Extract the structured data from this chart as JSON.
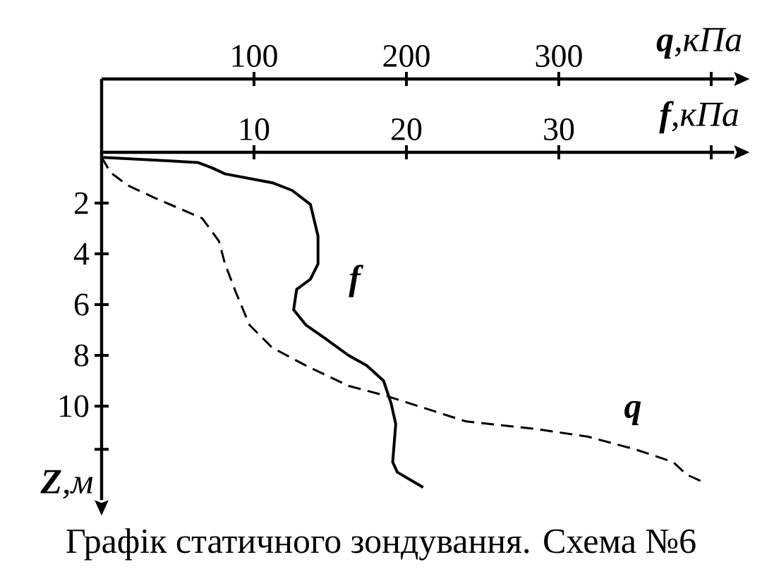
{
  "chart_data": {
    "type": "line",
    "title": "Графік статичного зондування. Схема №6",
    "xlabel": "**f**,кПа",
    "x2label": "**q**,кПа",
    "ylabel": "**Z**,м",
    "xlim": [
      0,
      41.5
    ],
    "xticks": [
      10,
      20,
      30,
      {
        "value": 40,
        "label": null
      }
    ],
    "x2lim": [
      0,
      415
    ],
    "x2ticks": [
      100,
      200,
      300,
      {
        "value": 400,
        "label": null
      }
    ],
    "ylim": [
      13.7,
      0
    ],
    "yticks": [
      2,
      4,
      6,
      8,
      10,
      {
        "value": 11.7,
        "label": null
      }
    ],
    "marker": "none",
    "series": [
      {
        "name": "f",
        "color": "#000000",
        "line_style": "solid",
        "x": [
          0.1,
          6.3,
          7.2,
          8.1,
          11.2,
          12.5,
          13.7,
          14.2,
          14.2,
          13.7,
          12.8,
          12.6,
          13.4,
          14.6,
          16.2,
          17.4,
          18.5,
          19.0,
          19.3,
          19.1,
          19.4,
          21.1
        ],
        "values": [
          0.2,
          0.4,
          0.6,
          0.85,
          1.2,
          1.5,
          2.05,
          3.3,
          4.4,
          5.0,
          5.4,
          6.2,
          6.8,
          7.3,
          8.0,
          8.4,
          9.0,
          9.9,
          10.7,
          12.2,
          12.6,
          13.2
        ]
      },
      {
        "name": "q",
        "color": "#000000",
        "line_style": "dashed",
        "axis": "x2",
        "x": [
          0,
          6,
          17,
          35,
          66,
          77,
          81,
          88,
          97,
          112,
          134,
          162,
          187,
          239,
          285,
          319,
          350,
          375,
          384,
          395
        ],
        "values": [
          0.2,
          0.8,
          1.3,
          1.8,
          2.6,
          3.5,
          4.4,
          5.5,
          6.8,
          7.7,
          8.4,
          9.2,
          9.6,
          10.6,
          10.9,
          11.2,
          11.7,
          12.2,
          12.7,
          13.0
        ]
      }
    ]
  }
}
